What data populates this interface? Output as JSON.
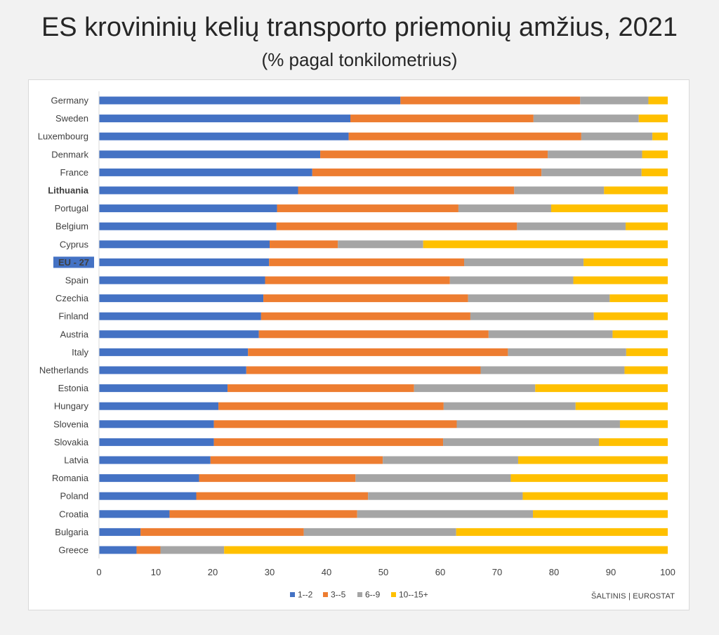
{
  "title": "ES krovininių kelių transporto priemonių amžius, 2021",
  "subtitle": "(% pagal tonkilometrius)",
  "source": "ŠALTINIS | EUROSTAT",
  "colors": {
    "s1": "#4472c4",
    "s2": "#ed7d31",
    "s3": "#a5a5a5",
    "s4": "#ffc000",
    "highlight_label_bg": "#4472c4"
  },
  "chart_data": {
    "type": "bar",
    "orientation": "horizontal",
    "stacked": true,
    "xlim": [
      0,
      100
    ],
    "xticks": [
      0,
      10,
      20,
      30,
      40,
      50,
      60,
      70,
      80,
      90,
      100
    ],
    "legend_position": "bottom",
    "bold_category": "Lithuania",
    "highlight_category": "EU - 27",
    "categories": [
      "Germany",
      "Sweden",
      "Luxembourg",
      "Denmark",
      "France",
      "Lithuania",
      "Portugal",
      "Belgium",
      "Cyprus",
      "EU - 27",
      "Spain",
      "Czechia",
      "Finland",
      "Austria",
      "Italy",
      "Netherlands",
      "Estonia",
      "Hungary",
      "Slovenia",
      "Slovakia",
      "Latvia",
      "Romania",
      "Poland",
      "Croatia",
      "Bulgaria",
      "Greece"
    ],
    "series": [
      {
        "name": "1--2",
        "values": [
          53.0,
          44.2,
          43.9,
          38.9,
          37.5,
          35.0,
          31.3,
          31.2,
          30.0,
          29.9,
          29.2,
          28.9,
          28.5,
          28.1,
          26.2,
          25.9,
          22.6,
          21.0,
          20.2,
          20.2,
          19.6,
          17.6,
          17.1,
          12.4,
          7.3,
          6.6
        ]
      },
      {
        "name": "3--5",
        "values": [
          31.6,
          32.2,
          40.9,
          40.0,
          40.3,
          38.0,
          31.9,
          42.3,
          12.0,
          34.3,
          32.5,
          36.0,
          36.8,
          40.4,
          45.7,
          41.2,
          32.8,
          39.6,
          42.7,
          40.3,
          30.3,
          27.5,
          30.2,
          33.0,
          28.7,
          4.2
        ]
      },
      {
        "name": "6--9",
        "values": [
          12.0,
          18.5,
          12.5,
          16.6,
          17.6,
          15.8,
          16.3,
          19.1,
          15.0,
          21.0,
          21.7,
          24.9,
          21.7,
          21.8,
          20.8,
          25.3,
          21.3,
          23.2,
          28.7,
          27.4,
          23.8,
          27.3,
          27.2,
          30.9,
          26.8,
          11.2
        ]
      },
      {
        "name": "10--15+",
        "values": [
          3.4,
          5.1,
          2.7,
          4.5,
          4.6,
          11.2,
          20.5,
          7.4,
          43.0,
          14.8,
          16.6,
          10.2,
          13.0,
          9.7,
          7.3,
          7.6,
          23.3,
          16.2,
          8.4,
          12.1,
          26.3,
          27.6,
          25.5,
          23.7,
          37.2,
          78.0
        ]
      }
    ]
  }
}
